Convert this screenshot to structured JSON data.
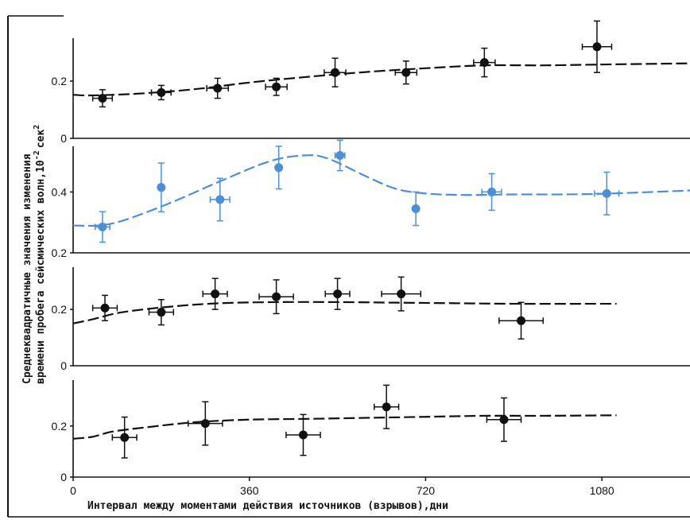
{
  "colors": {
    "ink": "#111111",
    "blue": "#4a8fd8"
  },
  "chart_data": {
    "type": "scatter",
    "xlabel": "Интервал между моментами действия источников (взрывов),дни",
    "ylabel_line1": "Среднеквадратичные значения изменения",
    "ylabel_line2": "времени пробега сейсмических волн,10",
    "ylabel_exp": "-2",
    "ylabel_unit": "сек",
    "ylabel_unit_exp": "2",
    "xlim": [
      0,
      1260
    ],
    "xticks": [
      0,
      360,
      720,
      1080
    ],
    "xtick_labels": [
      "0",
      "360",
      "720",
      "1080"
    ],
    "panels": [
      {
        "color": "#111111",
        "ylim": [
          0,
          0.35
        ],
        "yticks": [
          0,
          0.2
        ],
        "ytick_labels": [
          "0",
          "0.2"
        ],
        "points": [
          {
            "x": 60,
            "y": 0.14,
            "xerr": 20,
            "yerr": 0.03
          },
          {
            "x": 180,
            "y": 0.16,
            "xerr": 20,
            "yerr": 0.025
          },
          {
            "x": 295,
            "y": 0.175,
            "xerr": 22,
            "yerr": 0.035
          },
          {
            "x": 415,
            "y": 0.18,
            "xerr": 22,
            "yerr": 0.03
          },
          {
            "x": 535,
            "y": 0.23,
            "xerr": 22,
            "yerr": 0.05
          },
          {
            "x": 680,
            "y": 0.23,
            "xerr": 22,
            "yerr": 0.04
          },
          {
            "x": 840,
            "y": 0.265,
            "xerr": 22,
            "yerr": 0.05
          },
          {
            "x": 1070,
            "y": 0.32,
            "xerr": 30,
            "yerr": 0.09
          }
        ],
        "curve": [
          [
            0,
            0.152
          ],
          [
            30,
            0.15
          ],
          [
            80,
            0.152
          ],
          [
            150,
            0.158
          ],
          [
            250,
            0.172
          ],
          [
            360,
            0.195
          ],
          [
            480,
            0.215
          ],
          [
            600,
            0.232
          ],
          [
            720,
            0.245
          ],
          [
            840,
            0.255
          ],
          [
            960,
            0.255
          ],
          [
            1080,
            0.258
          ],
          [
            1260,
            0.262
          ]
        ]
      },
      {
        "color": "#4a8fd8",
        "ylim": [
          0.2,
          0.55
        ],
        "yticks": [
          0.2,
          0.4
        ],
        "ytick_labels": [
          "0.2",
          "0.4"
        ],
        "points": [
          {
            "x": 60,
            "y": 0.285,
            "xerr": 15,
            "yerr": 0.05
          },
          {
            "x": 180,
            "y": 0.415,
            "xerr": 0,
            "yerr": 0.08
          },
          {
            "x": 300,
            "y": 0.375,
            "xerr": 20,
            "yerr": 0.07
          },
          {
            "x": 420,
            "y": 0.48,
            "xerr": 0,
            "yerr": 0.07
          },
          {
            "x": 545,
            "y": 0.52,
            "xerr": 10,
            "yerr": 0.05
          },
          {
            "x": 700,
            "y": 0.345,
            "xerr": 0,
            "yerr": 0.055
          },
          {
            "x": 855,
            "y": 0.4,
            "xerr": 20,
            "yerr": 0.06
          },
          {
            "x": 1090,
            "y": 0.395,
            "xerr": 25,
            "yerr": 0.07
          }
        ],
        "curve": [
          [
            0,
            0.29
          ],
          [
            50,
            0.29
          ],
          [
            100,
            0.305
          ],
          [
            200,
            0.365
          ],
          [
            300,
            0.435
          ],
          [
            400,
            0.5
          ],
          [
            470,
            0.52
          ],
          [
            520,
            0.51
          ],
          [
            600,
            0.45
          ],
          [
            660,
            0.41
          ],
          [
            720,
            0.395
          ],
          [
            800,
            0.39
          ],
          [
            900,
            0.392
          ],
          [
            1000,
            0.392
          ],
          [
            1100,
            0.395
          ],
          [
            1260,
            0.405
          ]
        ]
      },
      {
        "color": "#111111",
        "ylim": [
          0,
          0.35
        ],
        "yticks": [
          0,
          0.2
        ],
        "ytick_labels": [
          "0",
          "0.2"
        ],
        "points": [
          {
            "x": 65,
            "y": 0.205,
            "xerr": 25,
            "yerr": 0.045
          },
          {
            "x": 180,
            "y": 0.19,
            "xerr": 25,
            "yerr": 0.045
          },
          {
            "x": 290,
            "y": 0.255,
            "xerr": 25,
            "yerr": 0.055
          },
          {
            "x": 415,
            "y": 0.245,
            "xerr": 35,
            "yerr": 0.06
          },
          {
            "x": 540,
            "y": 0.255,
            "xerr": 25,
            "yerr": 0.055
          },
          {
            "x": 670,
            "y": 0.255,
            "xerr": 40,
            "yerr": 0.06
          },
          {
            "x": 915,
            "y": 0.16,
            "xerr": 45,
            "yerr": 0.065
          }
        ],
        "curve": [
          [
            0,
            0.15
          ],
          [
            40,
            0.165
          ],
          [
            100,
            0.19
          ],
          [
            200,
            0.21
          ],
          [
            300,
            0.222
          ],
          [
            420,
            0.226
          ],
          [
            540,
            0.226
          ],
          [
            660,
            0.224
          ],
          [
            780,
            0.222
          ],
          [
            900,
            0.22
          ],
          [
            1110,
            0.22
          ]
        ]
      },
      {
        "color": "#111111",
        "ylim": [
          0,
          0.38
        ],
        "yticks": [
          0,
          0.2
        ],
        "ytick_labels": [
          "0",
          "0.2"
        ],
        "points": [
          {
            "x": 105,
            "y": 0.155,
            "xerr": 25,
            "yerr": 0.08
          },
          {
            "x": 270,
            "y": 0.21,
            "xerr": 35,
            "yerr": 0.085
          },
          {
            "x": 470,
            "y": 0.165,
            "xerr": 35,
            "yerr": 0.08
          },
          {
            "x": 640,
            "y": 0.275,
            "xerr": 25,
            "yerr": 0.085
          },
          {
            "x": 880,
            "y": 0.225,
            "xerr": 35,
            "yerr": 0.085
          }
        ],
        "curve": [
          [
            0,
            0.15
          ],
          [
            40,
            0.158
          ],
          [
            80,
            0.178
          ],
          [
            150,
            0.195
          ],
          [
            250,
            0.215
          ],
          [
            360,
            0.225
          ],
          [
            480,
            0.228
          ],
          [
            600,
            0.232
          ],
          [
            720,
            0.236
          ],
          [
            840,
            0.24
          ],
          [
            960,
            0.24
          ],
          [
            1110,
            0.242
          ]
        ]
      }
    ]
  }
}
